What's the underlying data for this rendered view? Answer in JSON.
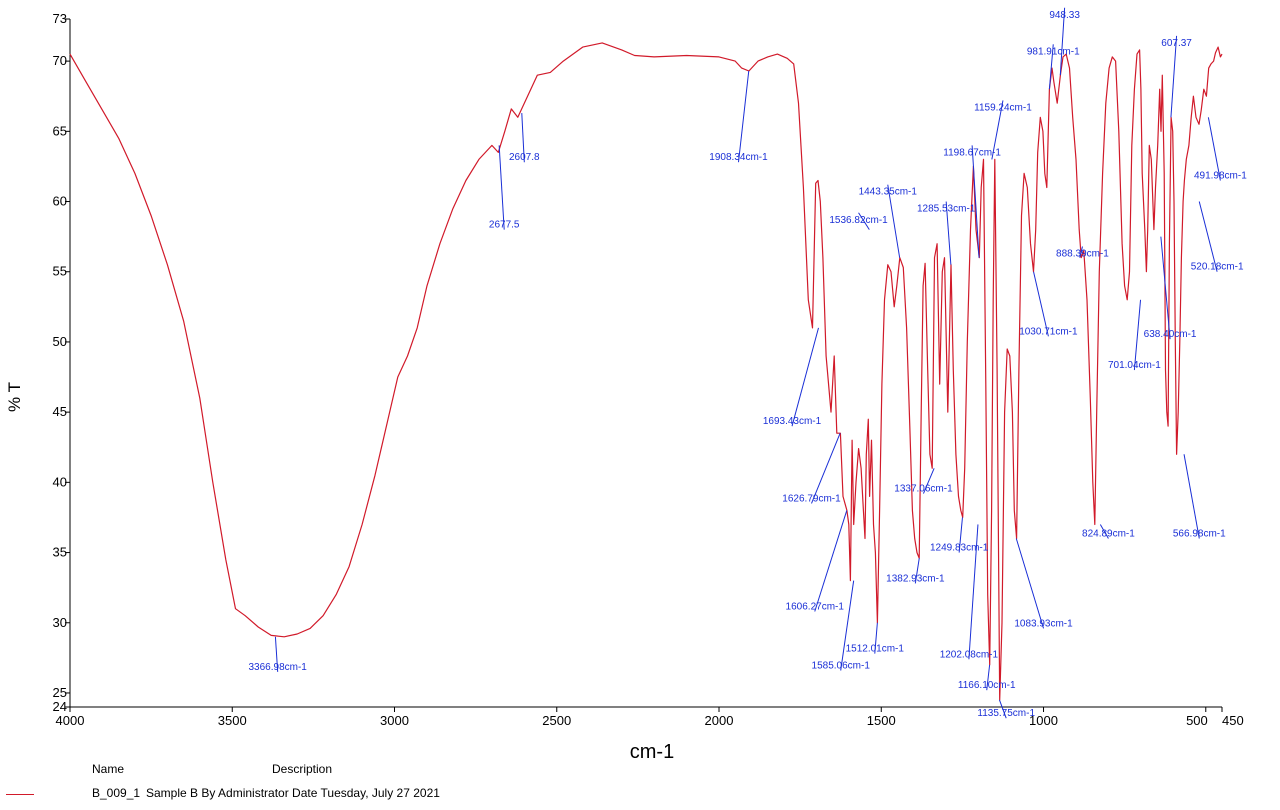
{
  "chart_data": {
    "type": "line",
    "xlabel": "cm-1",
    "ylabel": "% T",
    "xlim": [
      4000,
      450
    ],
    "ylim": [
      24,
      73
    ],
    "x_ticks": [
      {
        "value": 4000,
        "label": "4000"
      },
      {
        "value": 3500,
        "label": "3500"
      },
      {
        "value": 3000,
        "label": "3000"
      },
      {
        "value": 2500,
        "label": "2500"
      },
      {
        "value": 2000,
        "label": "2000"
      },
      {
        "value": 1500,
        "label": "1500"
      },
      {
        "value": 1000,
        "label": "1000"
      },
      {
        "value": 500,
        "label": "500"
      },
      {
        "value": 450,
        "label": "450"
      }
    ],
    "y_ticks": [
      {
        "value": 73,
        "label": "73"
      },
      {
        "value": 70,
        "label": "70"
      },
      {
        "value": 65,
        "label": "65"
      },
      {
        "value": 60,
        "label": "60"
      },
      {
        "value": 55,
        "label": "55"
      },
      {
        "value": 50,
        "label": "50"
      },
      {
        "value": 45,
        "label": "45"
      },
      {
        "value": 40,
        "label": "40"
      },
      {
        "value": 35,
        "label": "35"
      },
      {
        "value": 30,
        "label": "30"
      },
      {
        "value": 25,
        "label": "25"
      },
      {
        "value": 24,
        "label": "24"
      }
    ],
    "series": [
      {
        "name": "B_009_1",
        "color": "#d11a2a",
        "points": [
          [
            4000,
            70.5
          ],
          [
            3950,
            68.5
          ],
          [
            3900,
            66.5
          ],
          [
            3850,
            64.5
          ],
          [
            3800,
            62
          ],
          [
            3750,
            59
          ],
          [
            3700,
            55.5
          ],
          [
            3650,
            51.5
          ],
          [
            3600,
            46
          ],
          [
            3560,
            40
          ],
          [
            3520,
            34.5
          ],
          [
            3490,
            31
          ],
          [
            3460,
            30.5
          ],
          [
            3420,
            29.7
          ],
          [
            3380,
            29.1
          ],
          [
            3340,
            29
          ],
          [
            3300,
            29.2
          ],
          [
            3260,
            29.6
          ],
          [
            3220,
            30.5
          ],
          [
            3180,
            32
          ],
          [
            3140,
            34
          ],
          [
            3100,
            37
          ],
          [
            3060,
            40.5
          ],
          [
            3020,
            44.5
          ],
          [
            2990,
            47.5
          ],
          [
            2960,
            49
          ],
          [
            2930,
            51
          ],
          [
            2900,
            54
          ],
          [
            2860,
            57
          ],
          [
            2820,
            59.5
          ],
          [
            2780,
            61.5
          ],
          [
            2740,
            63
          ],
          [
            2700,
            64
          ],
          [
            2680,
            63.5
          ],
          [
            2660,
            65
          ],
          [
            2640,
            66.6
          ],
          [
            2620,
            66
          ],
          [
            2600,
            67
          ],
          [
            2560,
            69
          ],
          [
            2520,
            69.2
          ],
          [
            2480,
            70
          ],
          [
            2420,
            71
          ],
          [
            2360,
            71.3
          ],
          [
            2300,
            70.8
          ],
          [
            2260,
            70.4
          ],
          [
            2200,
            70.3
          ],
          [
            2100,
            70.4
          ],
          [
            2000,
            70.3
          ],
          [
            1950,
            70
          ],
          [
            1930,
            69.5
          ],
          [
            1908,
            69.3
          ],
          [
            1880,
            70
          ],
          [
            1850,
            70.3
          ],
          [
            1820,
            70.5
          ],
          [
            1790,
            70.2
          ],
          [
            1770,
            69.8
          ],
          [
            1755,
            67
          ],
          [
            1740,
            61
          ],
          [
            1725,
            53
          ],
          [
            1712,
            51
          ],
          [
            1702,
            61.3
          ],
          [
            1695,
            61.5
          ],
          [
            1688,
            60
          ],
          [
            1680,
            56
          ],
          [
            1670,
            49
          ],
          [
            1655,
            45
          ],
          [
            1645,
            49
          ],
          [
            1637,
            43.5
          ],
          [
            1626,
            43.5
          ],
          [
            1618,
            39
          ],
          [
            1606,
            38
          ],
          [
            1600,
            37
          ],
          [
            1595,
            33
          ],
          [
            1590,
            43
          ],
          [
            1585,
            37
          ],
          [
            1578,
            40
          ],
          [
            1570,
            42.4
          ],
          [
            1562,
            41
          ],
          [
            1555,
            38
          ],
          [
            1550,
            36
          ],
          [
            1546,
            42
          ],
          [
            1540,
            44.5
          ],
          [
            1536,
            39
          ],
          [
            1530,
            43
          ],
          [
            1524,
            37
          ],
          [
            1518,
            35
          ],
          [
            1512,
            30
          ],
          [
            1505,
            38
          ],
          [
            1498,
            47
          ],
          [
            1490,
            53
          ],
          [
            1480,
            55.5
          ],
          [
            1470,
            55
          ],
          [
            1460,
            52.5
          ],
          [
            1452,
            54
          ],
          [
            1443,
            56
          ],
          [
            1432,
            55.3
          ],
          [
            1422,
            51
          ],
          [
            1412,
            44
          ],
          [
            1404,
            38
          ],
          [
            1397,
            36
          ],
          [
            1390,
            35
          ],
          [
            1383,
            34.6
          ],
          [
            1377,
            45
          ],
          [
            1371,
            54
          ],
          [
            1365,
            55.6
          ],
          [
            1357,
            48
          ],
          [
            1350,
            42
          ],
          [
            1343,
            41
          ],
          [
            1336,
            56
          ],
          [
            1328,
            57
          ],
          [
            1320,
            47
          ],
          [
            1312,
            55
          ],
          [
            1305,
            56
          ],
          [
            1295,
            45
          ],
          [
            1285,
            55.5
          ],
          [
            1278,
            48
          ],
          [
            1270,
            42
          ],
          [
            1262,
            39
          ],
          [
            1255,
            38
          ],
          [
            1249,
            37.5
          ],
          [
            1243,
            41
          ],
          [
            1235,
            50
          ],
          [
            1225,
            58
          ],
          [
            1216,
            62.5
          ],
          [
            1208,
            58
          ],
          [
            1198,
            56
          ],
          [
            1192,
            61
          ],
          [
            1185,
            63
          ],
          [
            1178,
            47
          ],
          [
            1172,
            32
          ],
          [
            1166,
            27
          ],
          [
            1160,
            38
          ],
          [
            1155,
            53
          ],
          [
            1150,
            63
          ],
          [
            1143,
            48
          ],
          [
            1135,
            24.5
          ],
          [
            1128,
            30
          ],
          [
            1120,
            45
          ],
          [
            1112,
            49.5
          ],
          [
            1104,
            49
          ],
          [
            1096,
            45
          ],
          [
            1090,
            38
          ],
          [
            1083,
            36
          ],
          [
            1076,
            48
          ],
          [
            1068,
            59
          ],
          [
            1060,
            62
          ],
          [
            1050,
            61
          ],
          [
            1040,
            57
          ],
          [
            1031,
            55
          ],
          [
            1024,
            58
          ],
          [
            1018,
            63.5
          ],
          [
            1010,
            66
          ],
          [
            1002,
            65
          ],
          [
            996,
            62
          ],
          [
            990,
            61
          ],
          [
            982,
            68
          ],
          [
            974,
            69.5
          ],
          [
            968,
            68.5
          ],
          [
            958,
            67
          ],
          [
            948,
            69
          ],
          [
            940,
            70.3
          ],
          [
            930,
            70.5
          ],
          [
            920,
            69.5
          ],
          [
            910,
            66
          ],
          [
            900,
            63
          ],
          [
            890,
            58
          ],
          [
            884,
            56
          ],
          [
            876,
            56.5
          ],
          [
            866,
            53
          ],
          [
            856,
            46
          ],
          [
            848,
            40
          ],
          [
            842,
            37
          ],
          [
            836,
            45
          ],
          [
            828,
            55
          ],
          [
            818,
            62
          ],
          [
            808,
            67
          ],
          [
            798,
            69.5
          ],
          [
            788,
            70.3
          ],
          [
            778,
            70
          ],
          [
            768,
            65
          ],
          [
            758,
            57
          ],
          [
            750,
            54
          ],
          [
            742,
            53
          ],
          [
            735,
            55
          ],
          [
            728,
            64
          ],
          [
            720,
            68
          ],
          [
            712,
            70.5
          ],
          [
            704,
            70.8
          ],
          [
            700,
            68
          ],
          [
            696,
            62
          ],
          [
            692,
            60
          ],
          [
            688,
            58
          ],
          [
            683,
            55
          ],
          [
            679,
            58
          ],
          [
            674,
            64
          ],
          [
            668,
            63
          ],
          [
            660,
            58
          ],
          [
            655,
            61
          ],
          [
            648,
            64
          ],
          [
            642,
            68
          ],
          [
            638,
            65
          ],
          [
            634,
            69
          ],
          [
            628,
            62
          ],
          [
            624,
            48
          ],
          [
            620,
            45
          ],
          [
            616,
            44
          ],
          [
            612,
            57
          ],
          [
            607,
            66
          ],
          [
            602,
            65
          ],
          [
            598,
            60
          ],
          [
            594,
            50
          ],
          [
            590,
            42
          ],
          [
            585,
            45
          ],
          [
            580,
            50
          ],
          [
            575,
            56
          ],
          [
            570,
            60
          ],
          [
            566,
            61.5
          ],
          [
            560,
            63
          ],
          [
            552,
            64
          ],
          [
            545,
            66
          ],
          [
            538,
            67.5
          ],
          [
            530,
            66
          ],
          [
            521,
            65.5
          ],
          [
            514,
            66.5
          ],
          [
            506,
            68
          ],
          [
            498,
            67.5
          ],
          [
            491,
            69.5
          ],
          [
            484,
            69.8
          ],
          [
            476,
            70
          ],
          [
            470,
            70.6
          ],
          [
            462,
            71
          ],
          [
            455,
            70.3
          ],
          [
            450,
            70.5
          ]
        ]
      }
    ],
    "annotations": [
      {
        "label": "3366.98cm-1",
        "x": 3366.98,
        "y": 29.0,
        "lx": 3360,
        "ly": 26.5
      },
      {
        "label": "2607.8",
        "x": 2607.8,
        "y": 66.3,
        "lx": 2600,
        "ly": 62.8
      },
      {
        "label": "2677.5",
        "x": 2677.5,
        "y": 64.0,
        "lx": 2662,
        "ly": 58.0
      },
      {
        "label": "1908.34cm-1",
        "x": 1908.34,
        "y": 69.3,
        "lx": 1940,
        "ly": 62.8
      },
      {
        "label": "1693.43cm-1",
        "x": 1693.43,
        "y": 51.0,
        "lx": 1775,
        "ly": 44.0
      },
      {
        "label": "1626.79cm-1",
        "x": 1626.79,
        "y": 43.5,
        "lx": 1715,
        "ly": 38.5
      },
      {
        "label": "1606.27cm-1",
        "x": 1606.27,
        "y": 38.0,
        "lx": 1705,
        "ly": 30.8
      },
      {
        "label": "1585.06cm-1",
        "x": 1585.06,
        "y": 33.0,
        "lx": 1625,
        "ly": 26.6
      },
      {
        "label": "1536.82cm-1",
        "x": 1536.82,
        "y": 58.0,
        "lx": 1570,
        "ly": 59.2
      },
      {
        "label": "1512.01cm-1",
        "x": 1512.01,
        "y": 30.0,
        "lx": 1520,
        "ly": 27.8
      },
      {
        "label": "1443.35cm-1",
        "x": 1443.35,
        "y": 56.0,
        "lx": 1480,
        "ly": 61.2
      },
      {
        "label": "1382.93cm-1",
        "x": 1382.93,
        "y": 34.6,
        "lx": 1395,
        "ly": 32.8
      },
      {
        "label": "1337.06cm-1",
        "x": 1337.06,
        "y": 41.0,
        "lx": 1370,
        "ly": 39.2
      },
      {
        "label": "1285.53cm-1",
        "x": 1285.53,
        "y": 55.5,
        "lx": 1300,
        "ly": 60.0
      },
      {
        "label": "1249.83cm-1",
        "x": 1249.83,
        "y": 37.5,
        "lx": 1260,
        "ly": 35.0
      },
      {
        "label": "1202.08cm-1",
        "x": 1202.08,
        "y": 37.0,
        "lx": 1230,
        "ly": 27.4
      },
      {
        "label": "1198.67cm-1",
        "x": 1198.67,
        "y": 56.0,
        "lx": 1220,
        "ly": 64.0
      },
      {
        "label": "1166.10cm-1",
        "x": 1166.1,
        "y": 27.0,
        "lx": 1175,
        "ly": 25.2
      },
      {
        "label": "1159.24cm-1",
        "x": 1159.24,
        "y": 63.0,
        "lx": 1125,
        "ly": 67.2
      },
      {
        "label": "1135.75cm-1",
        "x": 1135.75,
        "y": 24.5,
        "lx": 1115,
        "ly": 23.2
      },
      {
        "label": "1083.93cm-1",
        "x": 1083.93,
        "y": 36.0,
        "lx": 1000,
        "ly": 29.6
      },
      {
        "label": "1030.71cm-1",
        "x": 1030.71,
        "y": 55.0,
        "lx": 985,
        "ly": 50.4
      },
      {
        "label": "981.91cm-1",
        "x": 981.91,
        "y": 68.0,
        "lx": 970,
        "ly": 71.2
      },
      {
        "label": "948.33",
        "x": 948.33,
        "y": 69.0,
        "lx": 935,
        "ly": 73.8
      },
      {
        "label": "888.39cm-1",
        "x": 888.39,
        "y": 56.0,
        "lx": 880,
        "ly": 56.8
      },
      {
        "label": "824.89cm-1",
        "x": 824.89,
        "y": 37.0,
        "lx": 800,
        "ly": 36.0
      },
      {
        "label": "701.04cm-1",
        "x": 701.04,
        "y": 53.0,
        "lx": 720,
        "ly": 48.0
      },
      {
        "label": "638.40cm-1",
        "x": 638.4,
        "y": 57.5,
        "lx": 610,
        "ly": 50.2
      },
      {
        "label": "607.37",
        "x": 607.37,
        "y": 66.0,
        "lx": 590,
        "ly": 71.8
      },
      {
        "label": "566.98cm-1",
        "x": 566.98,
        "y": 42.0,
        "lx": 520,
        "ly": 36.0
      },
      {
        "label": "520.18cm-1",
        "x": 520.18,
        "y": 60.0,
        "lx": 465,
        "ly": 55.0
      },
      {
        "label": "491.98cm-1",
        "x": 491.98,
        "y": 66.0,
        "lx": 455,
        "ly": 61.5
      }
    ]
  },
  "legend": {
    "header_name": "Name",
    "header_description": "Description",
    "entry_name": "B_009_1",
    "entry_description": "Sample B By Administrator Date Tuesday, July 27 2021"
  }
}
